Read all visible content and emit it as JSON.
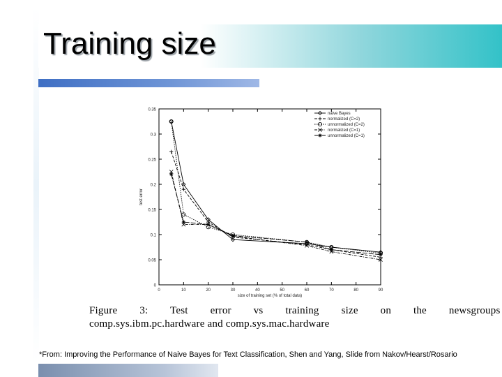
{
  "slide": {
    "title": "Training size",
    "caption_line1": "Figure 3: Test error vs training size on the newsgroups",
    "caption_line2": "comp.sys.ibm.pc.hardware and comp.sys.mac.hardware",
    "footnote": "*From: Improving the Performance of Naive Bayes for Text Classification, Shen and Yang, Slide from Nakov/Hearst/Rosario"
  },
  "chart_data": {
    "type": "line",
    "title": "",
    "xlabel": "size of training set (% of total data)",
    "ylabel": "test error",
    "x_ticks": [
      "0",
      "10",
      "20",
      "30",
      "40",
      "50",
      "60",
      "70",
      "80",
      "90"
    ],
    "y_ticks": [
      "0",
      "0.05",
      "0.1",
      "0.15",
      "0.2",
      "0.25",
      "0.3",
      "0.35"
    ],
    "xlim": [
      0,
      90
    ],
    "ylim": [
      0,
      0.35
    ],
    "grid": false,
    "legend_position": "top-right",
    "x": [
      5,
      10,
      20,
      30,
      60,
      70,
      90
    ],
    "series": [
      {
        "name": "naive Bayes",
        "marker": "diamond",
        "dash": "solid",
        "values": [
          0.325,
          0.2,
          0.13,
          0.09,
          0.082,
          0.075,
          0.065
        ]
      },
      {
        "name": "normalized (C=2)",
        "marker": "plus",
        "dash": "dashed",
        "values": [
          0.265,
          0.19,
          0.125,
          0.095,
          0.08,
          0.07,
          0.055
        ]
      },
      {
        "name": "unnormalized (C=2)",
        "marker": "circle",
        "dash": "dotted",
        "values": [
          0.325,
          0.14,
          0.115,
          0.1,
          0.085,
          0.075,
          0.063
        ]
      },
      {
        "name": "normalized (C=1)",
        "marker": "x",
        "dash": "dashdot",
        "values": [
          0.225,
          0.12,
          0.12,
          0.097,
          0.078,
          0.066,
          0.05
        ]
      },
      {
        "name": "unnormalized (C=1)",
        "marker": "star",
        "dash": "longdash",
        "values": [
          0.22,
          0.125,
          0.12,
          0.098,
          0.085,
          0.07,
          0.06
        ]
      }
    ]
  }
}
